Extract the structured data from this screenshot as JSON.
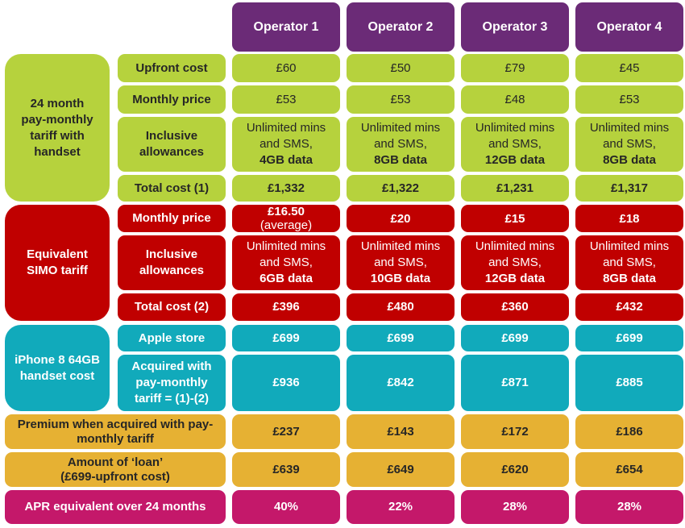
{
  "operators": [
    "Operator 1",
    "Operator 2",
    "Operator 3",
    "Operator 4"
  ],
  "groups": {
    "contract": [
      "24 month",
      "pay-monthly",
      "tariff with",
      "handset"
    ],
    "simo": [
      "Equivalent",
      "SIMO tariff"
    ],
    "handset": [
      "iPhone 8 64GB",
      "handset cost"
    ]
  },
  "row_labels": {
    "upfront": "Upfront cost",
    "monthly": "Monthly price",
    "inclusive": [
      "Inclusive",
      "allowances"
    ],
    "total1": "Total cost (1)",
    "simo_monthly": "Monthly price",
    "simo_inclusive": [
      "Inclusive",
      "allowances"
    ],
    "total2": "Total cost (2)",
    "apple": "Apple store",
    "acquired": [
      "Acquired with",
      "pay-monthly",
      "tariff = (1)-(2)"
    ],
    "premium": [
      "Premium when acquired with pay-",
      "monthly tariff"
    ],
    "loan": [
      "Amount of ‘loan’",
      "(£699-upfront cost)"
    ],
    "apr": "APR equivalent over 24 months"
  },
  "rows": {
    "upfront": [
      "£60",
      "£50",
      "£79",
      "£45"
    ],
    "monthly": [
      "£53",
      "£53",
      "£48",
      "£53"
    ],
    "inclusive": [
      [
        "Unlimited mins",
        "and SMS,",
        "4GB data"
      ],
      [
        "Unlimited mins",
        "and SMS,",
        "8GB data"
      ],
      [
        "Unlimited mins",
        "and SMS,",
        "12GB data"
      ],
      [
        "Unlimited mins",
        "and SMS,",
        "8GB data"
      ]
    ],
    "total1": [
      "£1,332",
      "£1,322",
      "£1,231",
      "£1,317"
    ],
    "simo_monthly": [
      [
        "£16.50",
        "(average)"
      ],
      [
        "£20"
      ],
      [
        "£15"
      ],
      [
        "£18"
      ]
    ],
    "simo_inclusive": [
      [
        "Unlimited mins",
        "and SMS,",
        "6GB data"
      ],
      [
        "Unlimited mins",
        "and SMS,",
        "10GB data"
      ],
      [
        "Unlimited mins",
        "and SMS,",
        "12GB data"
      ],
      [
        "Unlimited mins",
        "and SMS,",
        "8GB data"
      ]
    ],
    "total2": [
      "£396",
      "£480",
      "£360",
      "£432"
    ],
    "apple": [
      "£699",
      "£699",
      "£699",
      "£699"
    ],
    "acquired": [
      "£936",
      "£842",
      "£871",
      "£885"
    ],
    "premium": [
      "£237",
      "£143",
      "£172",
      "£186"
    ],
    "loan": [
      "£639",
      "£649",
      "£620",
      "£654"
    ],
    "apr": [
      "40%",
      "22%",
      "28%",
      "28%"
    ]
  },
  "colors": {
    "header": "#6b2b77",
    "contract": "#b6d23d",
    "simo": "#c00000",
    "handset": "#11aabb",
    "premium": "#e6b133",
    "apr": "#c4186a"
  }
}
